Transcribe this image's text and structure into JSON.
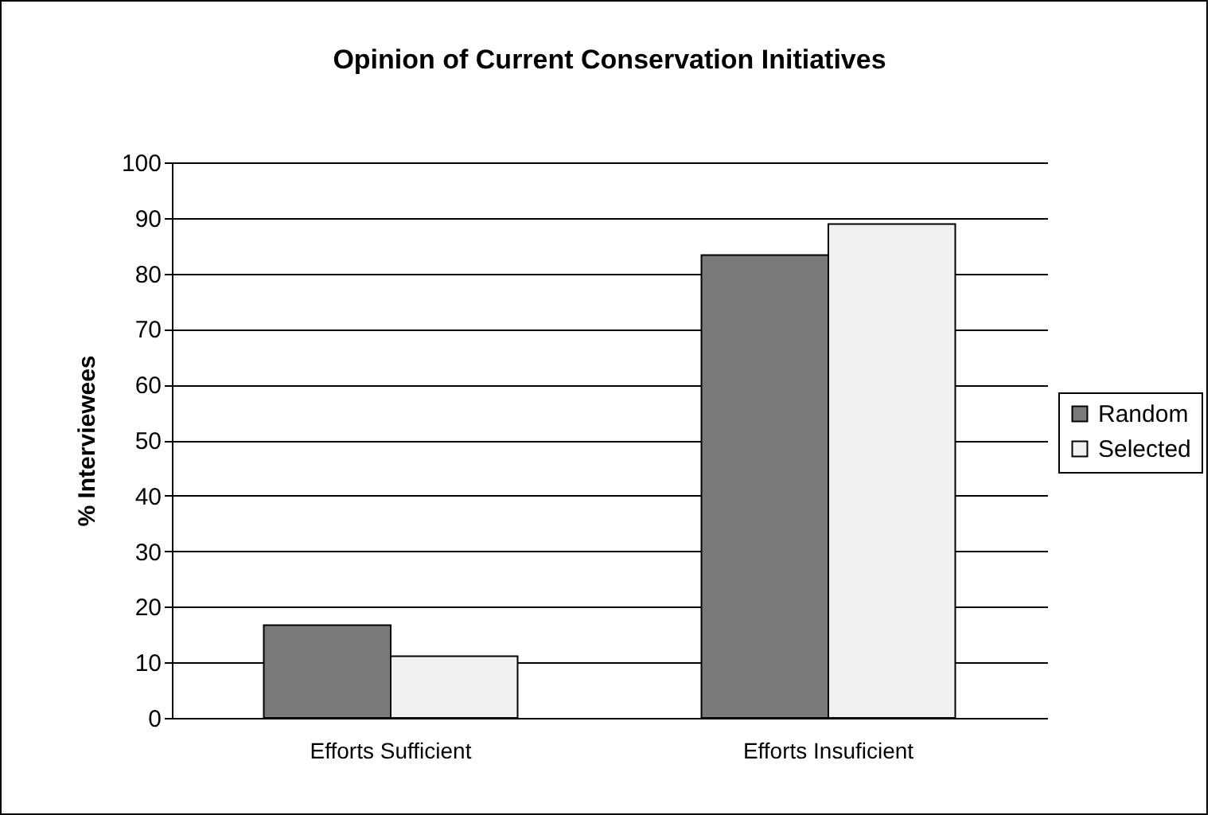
{
  "chart_data": {
    "type": "bar",
    "title": "Opinion of Current Conservation Initiatives",
    "ylabel": "% Interviewees",
    "categories": [
      "Efforts Sufficient",
      "Efforts Insuficient"
    ],
    "series": [
      {
        "name": "Random",
        "color": "#7a7a7a",
        "values": [
          16.7,
          83.3
        ]
      },
      {
        "name": "Selected",
        "color": "#f0f0f0",
        "values": [
          11.1,
          88.9
        ]
      }
    ],
    "ylim": [
      0,
      100
    ],
    "yticks": [
      0,
      10,
      20,
      30,
      40,
      50,
      60,
      70,
      80,
      90,
      100
    ],
    "grid": "y",
    "legend": "right"
  }
}
